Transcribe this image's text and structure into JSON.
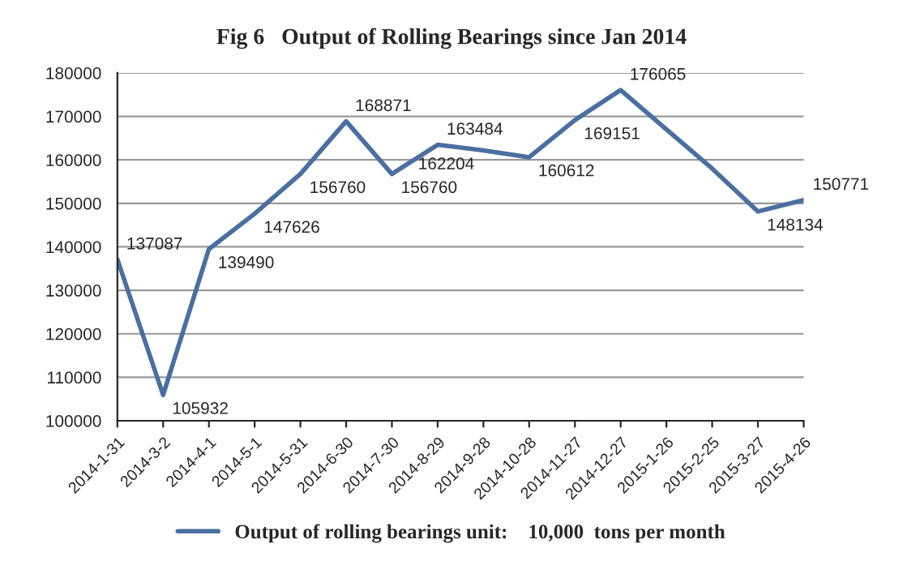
{
  "chart_data": {
    "type": "line",
    "title": "Fig 6   Output of Rolling Bearings since Jan 2014",
    "categories": [
      "2014-1-31",
      "2014-3-2",
      "2014-4-1",
      "2014-5-1",
      "2014-5-31",
      "2014-6-30",
      "2014-7-30",
      "2014-8-29",
      "2014-9-28",
      "2014-10-28",
      "2014-11-27",
      "2014-12-27",
      "2015-1-26",
      "2015-2-25",
      "2015-3-27",
      "2015-4-26"
    ],
    "series": [
      {
        "name": "Output of rolling bearings unit:    10,000  tons per month",
        "color": "#4a6fa0",
        "values": [
          137087,
          105932,
          139490,
          147626,
          156760,
          168871,
          156760,
          163484,
          162204,
          160612,
          169151,
          176065,
          167000,
          158000,
          148134,
          150771
        ],
        "value_labels": [
          "137087",
          "105932",
          "139490",
          "147626",
          "156760",
          "168871",
          "156760",
          "163484",
          "162204",
          "160612",
          "169151",
          "176065",
          null,
          null,
          "148134",
          "150771"
        ]
      }
    ],
    "ylim": [
      100000,
      180000
    ],
    "yticks": [
      100000,
      110000,
      120000,
      130000,
      140000,
      150000,
      160000,
      170000,
      180000
    ],
    "grid": "y",
    "legend": "bottom",
    "marker": "none",
    "line_style": "solid"
  }
}
